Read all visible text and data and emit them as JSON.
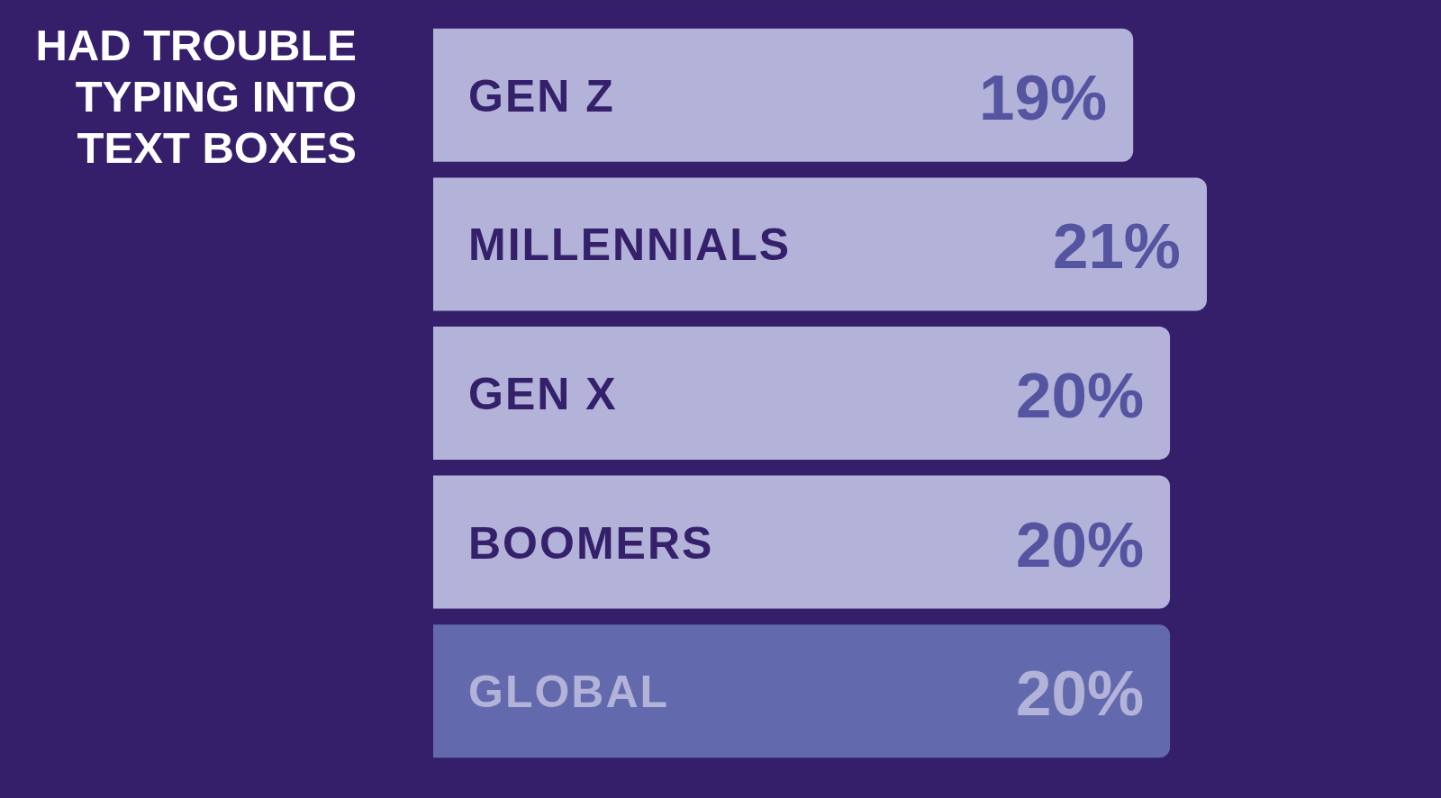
{
  "chart_data": {
    "type": "bar",
    "orientation": "horizontal",
    "title": "HAD TROUBLE TYPING INTO TEXT BOXES",
    "categories": [
      "GEN Z",
      "MILLENNIALS",
      "GEN X",
      "BOOMERS",
      "GLOBAL"
    ],
    "values": [
      19,
      21,
      20,
      20,
      20
    ],
    "value_labels": [
      "19%",
      "21%",
      "20%",
      "20%",
      "20%"
    ],
    "colors": [
      "#b3b3d9",
      "#b3b3d9",
      "#b3b3d9",
      "#b3b3d9",
      "#626aad"
    ],
    "xlim": [
      0,
      21
    ],
    "tick_labels": "y"
  }
}
